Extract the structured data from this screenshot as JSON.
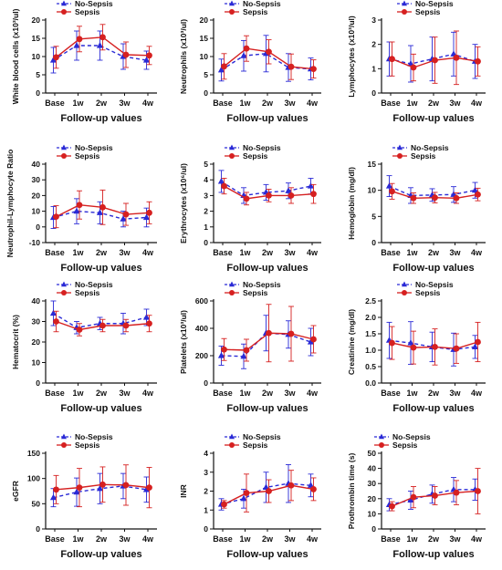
{
  "chart_data": [
    {
      "type": "line",
      "ylabel": "White blood cells (x10³/ul)",
      "xlabel": "Follow-up values",
      "categories": [
        "Base",
        "1w",
        "2w",
        "3w",
        "4w"
      ],
      "ylim": [
        0,
        20
      ],
      "yticks": [
        0,
        5,
        10,
        15,
        20
      ],
      "xlabel_offset": 0,
      "legend": "top-center",
      "series": [
        {
          "name": "No-Sepsis",
          "values": [
            9,
            13,
            13,
            10,
            9
          ],
          "err": [
            3.5,
            4,
            4,
            3.5,
            2.5
          ],
          "style": "dashed",
          "color": "#2a2ad6",
          "marker": "triangle"
        },
        {
          "name": "Sepsis",
          "values": [
            9.8,
            14.8,
            15.3,
            10.5,
            10.3
          ],
          "err": [
            3,
            3.5,
            3.5,
            3.5,
            2.5
          ],
          "style": "solid",
          "color": "#d62020",
          "marker": "circle"
        }
      ]
    },
    {
      "type": "line",
      "ylabel": "Neutrophils (x10³/ul)",
      "xlabel": "Follow-up values",
      "categories": [
        "Base",
        "1w",
        "2w",
        "3w",
        "4w"
      ],
      "ylim": [
        0,
        20
      ],
      "yticks": [
        0,
        5,
        10,
        15,
        20
      ],
      "xlabel_offset": 0,
      "legend": "top-center",
      "series": [
        {
          "name": "No-Sepsis",
          "values": [
            6.3,
            10.2,
            10.8,
            7,
            6.6
          ],
          "err": [
            3,
            4.2,
            5,
            3.8,
            3
          ],
          "style": "dashed",
          "color": "#2a2ad6",
          "marker": "triangle"
        },
        {
          "name": "Sepsis",
          "values": [
            7.3,
            12.2,
            11.3,
            7.2,
            6.6
          ],
          "err": [
            3.5,
            3.5,
            3.3,
            3.5,
            2.5
          ],
          "style": "solid",
          "color": "#d62020",
          "marker": "circle"
        }
      ]
    },
    {
      "type": "line",
      "ylabel": "Lymphocytes (x10³/ul)",
      "xlabel": "Follow-up values",
      "categories": [
        "Base",
        "1w",
        "2w",
        "3w",
        "4w"
      ],
      "ylim": [
        0,
        3
      ],
      "yticks": [
        0,
        1,
        2,
        3
      ],
      "xlabel_offset": 0,
      "legend": "top-right",
      "series": [
        {
          "name": "No-Sepsis",
          "values": [
            1.4,
            1.2,
            1.4,
            1.6,
            1.3
          ],
          "err": [
            0.7,
            0.75,
            0.9,
            0.9,
            0.7
          ],
          "style": "dashed",
          "color": "#2a2ad6",
          "marker": "triangle"
        },
        {
          "name": "Sepsis",
          "values": [
            1.4,
            1.05,
            1.35,
            1.45,
            1.3
          ],
          "err": [
            0.7,
            0.55,
            0.95,
            1.1,
            0.6
          ],
          "style": "solid",
          "color": "#d62020",
          "marker": "circle"
        }
      ]
    },
    {
      "type": "line",
      "ylabel": "Neutrophil-Lymphocyte Ratio",
      "xlabel": "Follow-up values",
      "categories": [
        "Base",
        "1w",
        "2w",
        "3w",
        "4w"
      ],
      "ylim": [
        -10,
        40
      ],
      "yticks": [
        -10,
        0,
        10,
        20,
        30,
        40
      ],
      "xlabel_offset": 1,
      "legend": "top-center",
      "series": [
        {
          "name": "No-Sepsis",
          "values": [
            6,
            10,
            9,
            5,
            6
          ],
          "err": [
            7,
            8,
            7,
            5,
            6
          ],
          "style": "dashed",
          "color": "#2a2ad6",
          "marker": "triangle"
        },
        {
          "name": "Sepsis",
          "values": [
            6.5,
            14,
            12.5,
            8,
            9
          ],
          "err": [
            7,
            9,
            11,
            7,
            7
          ],
          "style": "solid",
          "color": "#d62020",
          "marker": "circle"
        }
      ]
    },
    {
      "type": "line",
      "ylabel": "Erythrocytes (x10⁶/ul)",
      "xlabel": "Follow-up values",
      "categories": [
        "Base",
        "1w",
        "2w",
        "3w",
        "4w"
      ],
      "ylim": [
        0,
        5
      ],
      "yticks": [
        0,
        1,
        2,
        3,
        4,
        5
      ],
      "xlabel_offset": 0,
      "legend": "top-center",
      "series": [
        {
          "name": "No-Sepsis",
          "values": [
            3.9,
            3,
            3.2,
            3.3,
            3.6
          ],
          "err": [
            0.7,
            0.5,
            0.5,
            0.5,
            0.5
          ],
          "style": "dashed",
          "color": "#2a2ad6",
          "marker": "triangle"
        },
        {
          "name": "Sepsis",
          "values": [
            3.6,
            2.8,
            3,
            3,
            3.1
          ],
          "err": [
            0.5,
            0.4,
            0.4,
            0.5,
            0.6
          ],
          "style": "solid",
          "color": "#d62020",
          "marker": "circle"
        }
      ]
    },
    {
      "type": "line",
      "ylabel": "Hemoglobin (mg/dl)",
      "xlabel": "Follow-up values",
      "categories": [
        "Base",
        "1w",
        "2w",
        "3w",
        "4w"
      ],
      "ylim": [
        0,
        15
      ],
      "yticks": [
        0,
        5,
        10,
        15
      ],
      "xlabel_offset": 0,
      "legend": "top-center",
      "series": [
        {
          "name": "No-Sepsis",
          "values": [
            10.8,
            9,
            9.1,
            9.2,
            10
          ],
          "err": [
            2,
            1.5,
            1.2,
            1.5,
            1.5
          ],
          "style": "dashed",
          "color": "#2a2ad6",
          "marker": "triangle"
        },
        {
          "name": "Sepsis",
          "values": [
            9.8,
            8.5,
            8.6,
            8.5,
            9.2
          ],
          "err": [
            1.5,
            1,
            1,
            1,
            1.2
          ],
          "style": "solid",
          "color": "#d62020",
          "marker": "circle"
        }
      ]
    },
    {
      "type": "line",
      "ylabel": "Hematocrit (%)",
      "xlabel": "Follow-up values",
      "categories": [
        "Base",
        "1w",
        "2w",
        "3w",
        "4w"
      ],
      "ylim": [
        0,
        40
      ],
      "yticks": [
        0,
        10,
        20,
        30,
        40
      ],
      "xlabel_offset": 0,
      "legend": "top-center",
      "series": [
        {
          "name": "No-Sepsis",
          "values": [
            34,
            27,
            29,
            29,
            32
          ],
          "err": [
            6,
            3,
            3,
            5,
            4
          ],
          "style": "dashed",
          "color": "#2a2ad6",
          "marker": "triangle"
        },
        {
          "name": "Sepsis",
          "values": [
            30,
            26,
            28,
            28,
            29
          ],
          "err": [
            5,
            3,
            3,
            3,
            4
          ],
          "style": "solid",
          "color": "#d62020",
          "marker": "circle"
        }
      ]
    },
    {
      "type": "line",
      "ylabel": "Platelets (x10³/ul)",
      "xlabel": "Follow-up values",
      "categories": [
        "Base",
        "1w",
        "2w",
        "3w",
        "4w"
      ],
      "ylim": [
        0,
        600
      ],
      "yticks": [
        0,
        200,
        400,
        600
      ],
      "xlabel_offset": 0,
      "legend": "top-center",
      "series": [
        {
          "name": "No-Sepsis",
          "values": [
            200,
            195,
            365,
            355,
            300
          ],
          "err": [
            70,
            90,
            130,
            100,
            100
          ],
          "style": "dashed",
          "color": "#2a2ad6",
          "marker": "triangle"
        },
        {
          "name": "Sepsis",
          "values": [
            245,
            240,
            365,
            360,
            320
          ],
          "err": [
            80,
            80,
            210,
            200,
            100
          ],
          "style": "solid",
          "color": "#d62020",
          "marker": "circle"
        }
      ]
    },
    {
      "type": "line",
      "ylabel": "Creatinine (mg/dl)",
      "xlabel": "Follow-up values",
      "categories": [
        "Base",
        "1w",
        "2w",
        "3w",
        "4w"
      ],
      "ylim": [
        0,
        2.5
      ],
      "yticks": [
        0,
        0.5,
        1.0,
        1.5,
        2.0,
        2.5
      ],
      "xlabel_offset": 0,
      "legend": "top-right",
      "series": [
        {
          "name": "No-Sepsis",
          "values": [
            1.3,
            1.22,
            1.1,
            1.02,
            1.1
          ],
          "err": [
            0.55,
            0.65,
            0.45,
            0.5,
            0.35
          ],
          "style": "dashed",
          "color": "#2a2ad6",
          "marker": "triangle"
        },
        {
          "name": "Sepsis",
          "values": [
            1.22,
            1.08,
            1.1,
            1.05,
            1.25
          ],
          "err": [
            0.5,
            0.5,
            0.55,
            0.45,
            0.6
          ],
          "style": "solid",
          "color": "#d62020",
          "marker": "circle"
        }
      ]
    },
    {
      "type": "line",
      "ylabel": "eGFR",
      "xlabel": "Follow-up values",
      "categories": [
        "Base",
        "1w",
        "2w",
        "3w",
        "4w"
      ],
      "ylim": [
        0,
        150
      ],
      "yticks": [
        0,
        50,
        100,
        150
      ],
      "xlabel_offset": 0,
      "legend": "top-center",
      "series": [
        {
          "name": "No-Sepsis",
          "values": [
            62,
            73,
            80,
            85,
            78
          ],
          "err": [
            18,
            28,
            30,
            25,
            25
          ],
          "style": "dashed",
          "color": "#2a2ad6",
          "marker": "triangle"
        },
        {
          "name": "Sepsis",
          "values": [
            78,
            82,
            88,
            87,
            82
          ],
          "err": [
            28,
            38,
            35,
            40,
            40
          ],
          "style": "solid",
          "color": "#d62020",
          "marker": "circle"
        }
      ]
    },
    {
      "type": "line",
      "ylabel": "INR",
      "xlabel": "Follow-up values",
      "categories": [
        "Base",
        "1w",
        "2w",
        "3w",
        "4w"
      ],
      "ylim": [
        0,
        4
      ],
      "yticks": [
        0,
        1,
        2,
        3,
        4
      ],
      "xlabel_offset": 0,
      "legend": "top-center",
      "series": [
        {
          "name": "No-Sepsis",
          "values": [
            1.3,
            1.6,
            2.2,
            2.4,
            2.3
          ],
          "err": [
            0.3,
            0.5,
            0.8,
            1,
            0.6
          ],
          "style": "dashed",
          "color": "#2a2ad6",
          "marker": "triangle"
        },
        {
          "name": "Sepsis",
          "values": [
            1.3,
            1.9,
            2,
            2.3,
            2.1
          ],
          "err": [
            0.2,
            1,
            0.6,
            0.8,
            0.6
          ],
          "style": "solid",
          "color": "#d62020",
          "marker": "circle"
        }
      ]
    },
    {
      "type": "line",
      "ylabel": "Prothrombin time (s)",
      "xlabel": "Follow-up values",
      "categories": [
        "Base",
        "1w",
        "2w",
        "3w",
        "4w"
      ],
      "ylim": [
        0,
        50
      ],
      "yticks": [
        0,
        10,
        20,
        30,
        40,
        50
      ],
      "xlabel_offset": 0,
      "legend": "top-left",
      "series": [
        {
          "name": "No-Sepsis",
          "values": [
            16,
            19,
            23,
            26,
            26
          ],
          "err": [
            4,
            6,
            6,
            8,
            7
          ],
          "style": "dashed",
          "color": "#2a2ad6",
          "marker": "triangle"
        },
        {
          "name": "Sepsis",
          "values": [
            15,
            21,
            22,
            24,
            25
          ],
          "err": [
            3,
            7,
            6,
            8,
            15
          ],
          "style": "solid",
          "color": "#d62020",
          "marker": "circle"
        }
      ]
    }
  ]
}
